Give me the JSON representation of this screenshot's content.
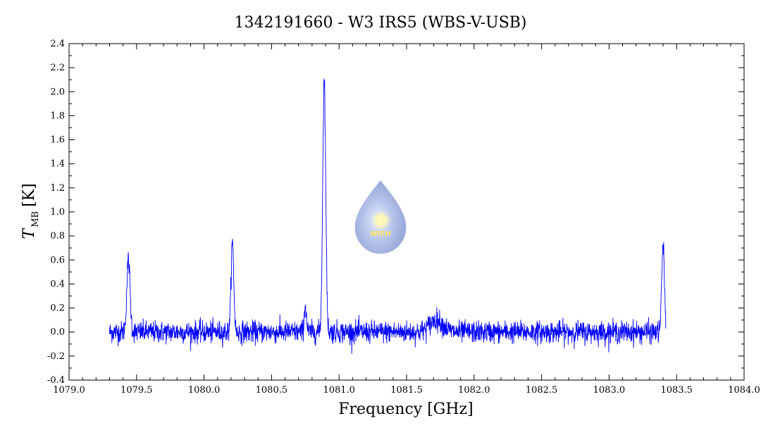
{
  "chart_data": {
    "type": "line",
    "title": "1342191660 - W3 IRS5 (WBS-V-USB)",
    "xlabel": "Frequency [GHz]",
    "ylabel_main": "T",
    "ylabel_sub": "MB",
    "ylabel_unit": "[K]",
    "xlim": [
      1079.0,
      1084.0
    ],
    "ylim": [
      -0.4,
      2.4
    ],
    "x_ticks": [
      "1079.0",
      "1079.5",
      "1080.0",
      "1080.5",
      "1081.0",
      "1081.5",
      "1082.0",
      "1082.5",
      "1083.0",
      "1083.5",
      "1084.0"
    ],
    "y_ticks": [
      "-0.4",
      "-0.2",
      "0.0",
      "0.2",
      "0.4",
      "0.6",
      "0.8",
      "1.0",
      "1.2",
      "1.4",
      "1.6",
      "1.8",
      "2.0",
      "2.2",
      "2.4"
    ],
    "grid": false,
    "line_color": "#0000ff",
    "series": [
      {
        "x_range": [
          1079.3,
          1083.42
        ],
        "noise_rms": 0.045,
        "peaks": [
          {
            "center": 1079.44,
            "height": 0.6,
            "width": 0.012
          },
          {
            "center": 1080.21,
            "height": 0.74,
            "width": 0.01
          },
          {
            "center": 1080.75,
            "height": 0.22,
            "width": 0.008
          },
          {
            "center": 1080.89,
            "height": 2.1,
            "width": 0.011
          },
          {
            "center": 1081.72,
            "height": 0.1,
            "width": 0.05
          },
          {
            "center": 1083.4,
            "height": 0.72,
            "width": 0.01
          }
        ]
      }
    ]
  },
  "logo": {
    "text": "WISH",
    "color": "#9aaee0"
  }
}
